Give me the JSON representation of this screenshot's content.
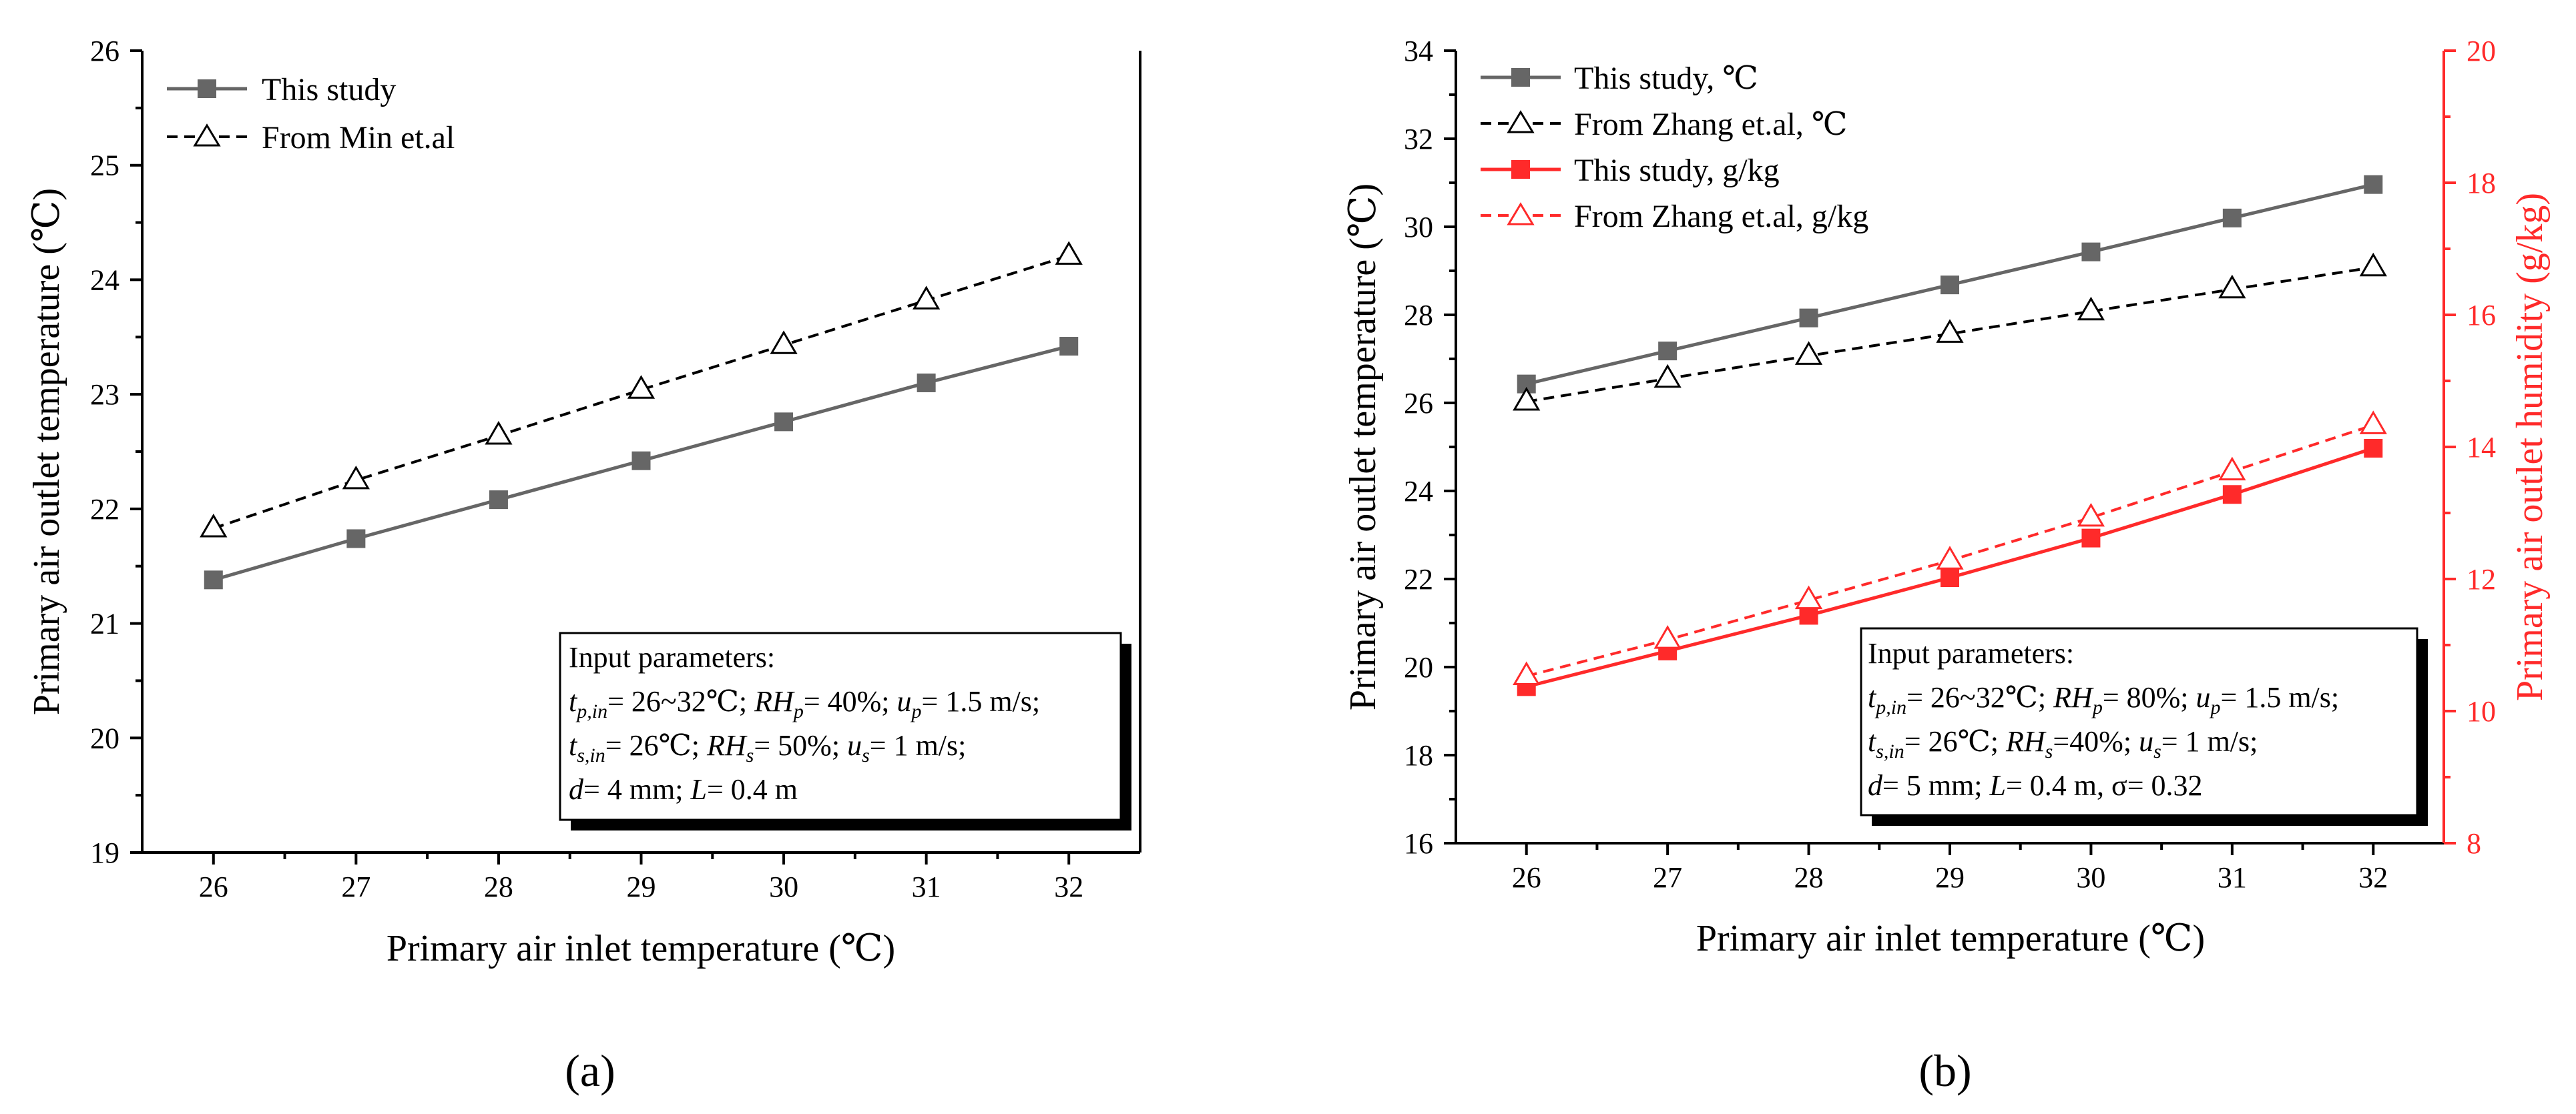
{
  "chart_data": [
    {
      "type": "line",
      "panel_label": "(a)",
      "xlabel": "Primary air inlet temperature (℃)",
      "ylabel": "Primary air outlet temperature (℃)",
      "xlim": [
        25.5,
        32.5
      ],
      "ylim": [
        19,
        26
      ],
      "x_ticks": [
        "26",
        "27",
        "28",
        "29",
        "30",
        "31",
        "32"
      ],
      "y_ticks": [
        "19",
        "20",
        "21",
        "22",
        "23",
        "24",
        "25",
        "26"
      ],
      "legend": [
        "This study",
        "From Min et.al"
      ],
      "series": [
        {
          "name": "This study",
          "color": "#666666",
          "marker": "square",
          "dash": "solid",
          "x": [
            26,
            27,
            28,
            29,
            30,
            31,
            32
          ],
          "values": [
            21.38,
            21.74,
            22.08,
            22.42,
            22.76,
            23.1,
            23.42
          ]
        },
        {
          "name": "From Min et.al",
          "color": "#000000",
          "marker": "open-triangle",
          "dash": "dashed",
          "x": [
            26,
            27,
            28,
            29,
            30,
            31,
            32
          ],
          "values": [
            21.83,
            22.25,
            22.64,
            23.04,
            23.43,
            23.82,
            24.21
          ]
        }
      ],
      "info": {
        "title": "Input parameters:",
        "line1": [
          "t",
          "p,in",
          "= 26~32℃; ",
          "RH",
          "p",
          "= 40%; ",
          "u",
          "p",
          "= 1.5 m/s;"
        ],
        "line2": [
          "t",
          "s,in",
          "= 26℃; ",
          "RH",
          "s",
          "= 50%; ",
          "u",
          "s",
          "= 1 m/s;"
        ],
        "line3": [
          "d",
          "= 4 mm; ",
          "L",
          "= 0.4 m"
        ]
      }
    },
    {
      "type": "line",
      "panel_label": "(b)",
      "xlabel": "Primary air inlet temperature (℃)",
      "ylabel": "Primary air outlet temperature (℃)",
      "y2label": "Primary air outlet humidity (g/kg)",
      "xlim": [
        25.5,
        32.5
      ],
      "ylim": [
        16,
        34
      ],
      "y2lim": [
        8,
        20
      ],
      "x_ticks": [
        "26",
        "27",
        "28",
        "29",
        "30",
        "31",
        "32"
      ],
      "y_ticks": [
        "16",
        "18",
        "20",
        "22",
        "24",
        "26",
        "28",
        "30",
        "32",
        "34"
      ],
      "y2_ticks": [
        "8",
        "10",
        "12",
        "14",
        "16",
        "18",
        "20"
      ],
      "legend": [
        "This study, ℃",
        "From Zhang et.al, ℃",
        "This study, g/kg",
        "From Zhang et.al, g/kg"
      ],
      "series": [
        {
          "name": "This study, ℃",
          "axis": "left",
          "color": "#666666",
          "marker": "square",
          "dash": "solid",
          "x": [
            26,
            27,
            28,
            29,
            30,
            31,
            32
          ],
          "values": [
            26.43,
            27.18,
            27.93,
            28.68,
            29.43,
            30.2,
            30.96
          ]
        },
        {
          "name": "From Zhang et.al, ℃",
          "axis": "left",
          "color": "#000000",
          "marker": "open-triangle",
          "dash": "dashed",
          "x": [
            26,
            27,
            28,
            29,
            30,
            31,
            32
          ],
          "values": [
            26.03,
            26.55,
            27.07,
            27.57,
            28.08,
            28.58,
            29.08
          ]
        },
        {
          "name": "This study, g/kg",
          "axis": "right",
          "color": "#ff2a2a",
          "marker": "square",
          "dash": "solid",
          "x": [
            26,
            27,
            28,
            29,
            30,
            31,
            32
          ],
          "values": [
            10.37,
            10.91,
            11.45,
            12.02,
            12.62,
            13.28,
            13.98
          ]
        },
        {
          "name": "From Zhang et.al, g/kg",
          "axis": "right",
          "color": "#ff2a2a",
          "marker": "open-triangle",
          "dash": "dashed",
          "x": [
            26,
            27,
            28,
            29,
            30,
            31,
            32
          ],
          "values": [
            10.53,
            11.08,
            11.68,
            12.28,
            12.93,
            13.63,
            14.33
          ]
        }
      ],
      "info": {
        "title": "Input parameters:",
        "line1": [
          "t",
          "p,in",
          "= 26~32℃; ",
          "RH",
          "p",
          "= 80%; ",
          "u",
          "p",
          "= 1.5 m/s;"
        ],
        "line2": [
          "t",
          "s,in",
          "= 26℃; ",
          "RH",
          "s",
          "=40%; ",
          "u",
          "s",
          "= 1 m/s;"
        ],
        "line3": [
          "d",
          "= 5 mm; ",
          "L",
          "= 0.4 m, σ= 0.32"
        ]
      }
    }
  ]
}
